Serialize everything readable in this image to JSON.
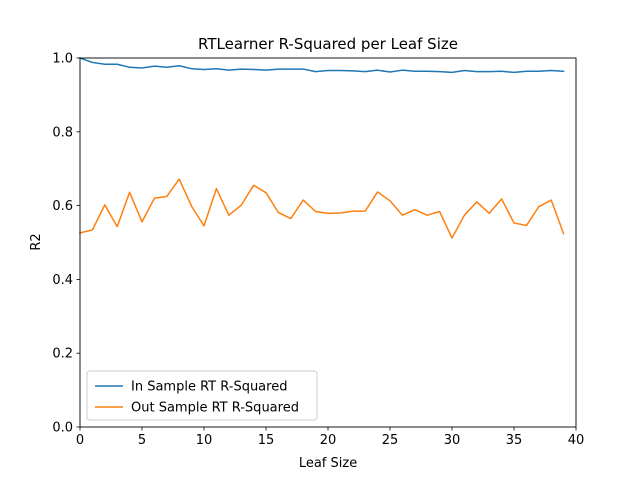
{
  "chart_data": {
    "type": "line",
    "title": "RTLearner R-Squared per Leaf Size",
    "xlabel": "Leaf Size",
    "ylabel": "R2",
    "xlim": [
      0,
      40
    ],
    "ylim": [
      0.0,
      1.0
    ],
    "xticks": [
      "0",
      "5",
      "10",
      "15",
      "20",
      "25",
      "30",
      "35",
      "40"
    ],
    "yticks": [
      "0.0",
      "0.2",
      "0.4",
      "0.6",
      "0.8",
      "1.0"
    ],
    "grid": false,
    "legend_position": "lower-left",
    "x": [
      0,
      1,
      2,
      3,
      4,
      5,
      6,
      7,
      8,
      9,
      10,
      11,
      12,
      13,
      14,
      15,
      16,
      17,
      18,
      19,
      20,
      21,
      22,
      23,
      24,
      25,
      26,
      27,
      28,
      29,
      30,
      31,
      32,
      33,
      34,
      35,
      36,
      37,
      38,
      39
    ],
    "series": [
      {
        "name": "In Sample RT R-Squared",
        "color": "#1f77b4",
        "values": [
          1.0,
          0.988,
          0.983,
          0.983,
          0.975,
          0.973,
          0.978,
          0.975,
          0.979,
          0.971,
          0.969,
          0.971,
          0.967,
          0.97,
          0.969,
          0.967,
          0.97,
          0.97,
          0.97,
          0.963,
          0.966,
          0.966,
          0.965,
          0.963,
          0.967,
          0.962,
          0.967,
          0.964,
          0.964,
          0.963,
          0.961,
          0.966,
          0.963,
          0.963,
          0.964,
          0.961,
          0.964,
          0.964,
          0.966,
          0.964
        ]
      },
      {
        "name": "Out Sample RT R-Squared",
        "color": "#ff7f0e",
        "values": [
          0.526,
          0.534,
          0.602,
          0.543,
          0.636,
          0.556,
          0.62,
          0.625,
          0.672,
          0.598,
          0.545,
          0.646,
          0.574,
          0.601,
          0.655,
          0.635,
          0.581,
          0.565,
          0.615,
          0.584,
          0.579,
          0.58,
          0.585,
          0.585,
          0.637,
          0.613,
          0.574,
          0.589,
          0.574,
          0.584,
          0.512,
          0.574,
          0.61,
          0.579,
          0.618,
          0.553,
          0.546,
          0.597,
          0.615,
          0.524
        ]
      }
    ]
  }
}
